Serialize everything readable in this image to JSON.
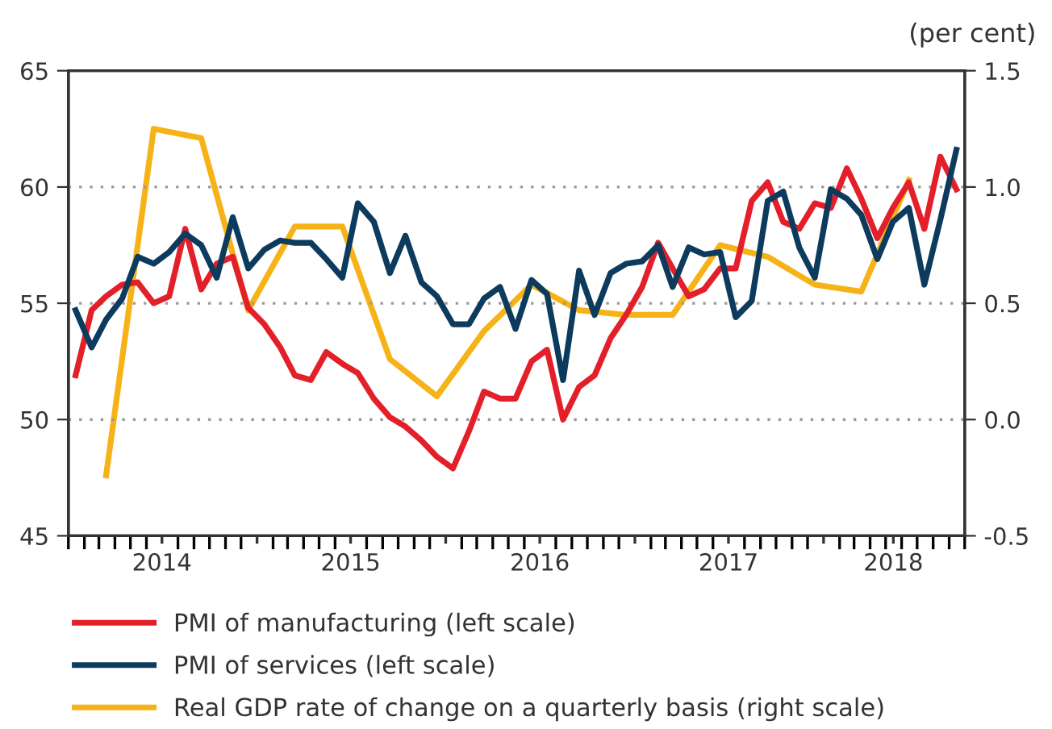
{
  "chart_data": {
    "type": "line",
    "y2label": "(per cent)",
    "x": [
      "2014-01-15",
      "2014-02-15",
      "2014-03-15",
      "2014-04-15",
      "2014-05-15",
      "2014-06-15",
      "2014-07-15",
      "2014-08-15",
      "2014-09-15",
      "2014-10-15",
      "2014-11-15",
      "2014-12-15",
      "2015-01-15",
      "2015-02-15",
      "2015-03-15",
      "2015-04-15",
      "2015-05-15",
      "2015-06-15",
      "2015-07-15",
      "2015-08-15",
      "2015-09-15",
      "2015-10-15",
      "2015-11-15",
      "2015-12-15",
      "2016-01-15",
      "2016-02-15",
      "2016-03-15",
      "2016-04-15",
      "2016-05-15",
      "2016-06-15",
      "2016-07-15",
      "2016-08-15",
      "2016-09-15",
      "2016-10-15",
      "2016-11-15",
      "2016-12-15",
      "2017-01-15",
      "2017-02-15",
      "2017-03-15",
      "2017-04-15",
      "2017-05-15",
      "2017-06-15",
      "2017-07-15",
      "2017-08-15",
      "2017-09-15",
      "2017-10-15",
      "2017-11-15",
      "2017-12-15",
      "2018-01-15",
      "2018-02-15",
      "2018-03-15",
      "2018-04-15",
      "2018-05-15",
      "2018-06-15",
      "2018-07-15",
      "2018-08-15",
      "2018-09-15"
    ],
    "series": [
      {
        "name": "PMI of manufacturing (left scale)",
        "color": "#e3202a",
        "values": [
          51.9,
          54.7,
          55.3,
          55.8,
          55.9,
          55.0,
          55.3,
          58.2,
          55.6,
          56.7,
          57.0,
          54.8,
          54.1,
          53.1,
          51.9,
          51.7,
          52.9,
          52.4,
          52.0,
          50.9,
          50.1,
          49.7,
          49.1,
          48.4,
          47.9,
          49.5,
          51.2,
          50.9,
          50.9,
          52.5,
          53.0,
          50.0,
          51.4,
          51.9,
          53.5,
          54.5,
          55.7,
          57.6,
          56.5,
          55.3,
          55.6,
          56.5,
          56.5,
          59.4,
          60.2,
          58.5,
          58.2,
          59.3,
          59.1,
          60.8,
          59.5,
          57.8,
          59.1,
          60.2,
          58.2,
          61.3,
          59.9
        ]
      },
      {
        "name": "PMI of services (left scale)",
        "color": "#0d3b5e",
        "values": [
          54.7,
          53.1,
          54.3,
          55.2,
          57.0,
          56.7,
          57.2,
          58.0,
          57.5,
          56.1,
          58.7,
          56.5,
          57.3,
          57.7,
          57.6,
          57.6,
          56.9,
          56.1,
          59.3,
          58.5,
          56.3,
          57.9,
          55.9,
          55.3,
          54.1,
          54.1,
          55.2,
          55.7,
          53.9,
          56.0,
          55.4,
          51.7,
          56.4,
          54.5,
          56.3,
          56.7,
          56.8,
          57.5,
          55.7,
          57.4,
          57.1,
          57.2,
          54.4,
          55.1,
          59.4,
          59.8,
          57.4,
          56.1,
          59.9,
          59.5,
          58.8,
          56.9,
          58.5,
          59.1,
          55.8,
          58.6,
          61.6
        ]
      },
      {
        "name": "Real GDP rate of change on a quarterly basis (right scale)",
        "color": "#f6b318",
        "axis": "y2",
        "x": [
          "2014-03-15",
          "2014-06-15",
          "2014-09-15",
          "2014-12-15",
          "2015-03-15",
          "2015-06-15",
          "2015-09-15",
          "2015-12-15",
          "2016-03-15",
          "2016-06-15",
          "2016-09-15",
          "2016-12-15",
          "2017-03-15",
          "2017-06-15",
          "2017-09-15",
          "2017-12-15",
          "2018-03-15",
          "2018-06-15"
        ],
        "values": [
          -0.24,
          1.25,
          1.21,
          0.47,
          0.83,
          0.83,
          0.26,
          0.1,
          0.38,
          0.58,
          0.47,
          0.45,
          0.45,
          0.75,
          0.7,
          0.58,
          0.55,
          1.03
        ]
      }
    ],
    "xlim": [
      "2014-01-01",
      "2018-10-01"
    ],
    "xticks": [
      {
        "value": "2014-07-01",
        "label": "2014"
      },
      {
        "value": "2015-01-01",
        "label": null
      },
      {
        "value": "2015-07-01",
        "label": "2015"
      },
      {
        "value": "2016-01-01",
        "label": null
      },
      {
        "value": "2016-07-01",
        "label": "2016"
      },
      {
        "value": "2017-01-01",
        "label": null
      },
      {
        "value": "2017-07-01",
        "label": "2017"
      },
      {
        "value": "2018-01-01",
        "label": null
      },
      {
        "value": "2018-05-16",
        "label": "2018"
      }
    ],
    "ylim": [
      45,
      65
    ],
    "yticks": [
      45,
      50,
      55,
      60,
      65
    ],
    "y2lim": [
      -0.5,
      1.5
    ],
    "y2ticks": [
      {
        "value": -0.5,
        "label": "-0.5"
      },
      {
        "value": 0,
        "label": "0.0"
      },
      {
        "value": 0.5,
        "label": "0.5"
      },
      {
        "value": 1,
        "label": "1.0"
      },
      {
        "value": 1.5,
        "label": "1.5"
      }
    ],
    "grid": "y",
    "legend": "bottom",
    "line_style": "solid",
    "marker": "none"
  }
}
